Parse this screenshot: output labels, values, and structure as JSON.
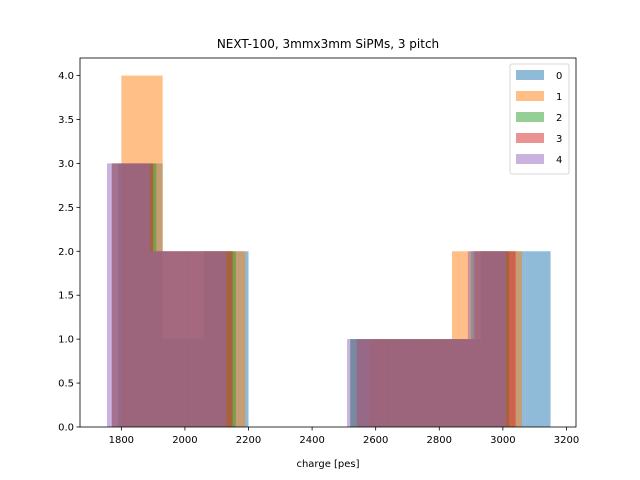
{
  "chart_data": {
    "type": "bar",
    "title": "NEXT-100, 3mmx3mm SiPMs, 3 pitch",
    "xlabel": "charge [pes]",
    "ylabel": "",
    "xlim": [
      1670,
      3230
    ],
    "ylim": [
      0,
      4.2
    ],
    "xticks": [
      1800,
      2000,
      2200,
      2400,
      2600,
      2800,
      3000,
      3200
    ],
    "yticks": [
      0.0,
      0.5,
      1.0,
      1.5,
      2.0,
      2.5,
      3.0,
      3.5,
      4.0
    ],
    "grid": false,
    "legend_position": "top-right",
    "alpha": 0.5,
    "series": [
      {
        "name": "0",
        "color": "#1f77b4",
        "bins": [
          {
            "x0": 1790,
            "x1": 1930,
            "count": 3
          },
          {
            "x0": 1930,
            "x1": 2060,
            "count": 1
          },
          {
            "x0": 2060,
            "x1": 2200,
            "count": 2
          },
          {
            "x0": 2520,
            "x1": 2650,
            "count": 1
          },
          {
            "x0": 2650,
            "x1": 2790,
            "count": 1
          },
          {
            "x0": 2790,
            "x1": 2930,
            "count": 1
          },
          {
            "x0": 2930,
            "x1": 3070,
            "count": 2
          },
          {
            "x0": 3070,
            "x1": 3150,
            "count": 2
          }
        ]
      },
      {
        "name": "1",
        "color": "#ff7f0e",
        "bins": [
          {
            "x0": 1800,
            "x1": 1930,
            "count": 4
          },
          {
            "x0": 1930,
            "x1": 2060,
            "count": 2
          },
          {
            "x0": 2060,
            "x1": 2190,
            "count": 2
          },
          {
            "x0": 2580,
            "x1": 2710,
            "count": 1
          },
          {
            "x0": 2710,
            "x1": 2840,
            "count": 1
          },
          {
            "x0": 2840,
            "x1": 2970,
            "count": 2
          },
          {
            "x0": 2970,
            "x1": 3060,
            "count": 2
          }
        ]
      },
      {
        "name": "2",
        "color": "#2ca02c",
        "bins": [
          {
            "x0": 1770,
            "x1": 1910,
            "count": 3
          },
          {
            "x0": 1910,
            "x1": 2040,
            "count": 2
          },
          {
            "x0": 2040,
            "x1": 2160,
            "count": 2
          },
          {
            "x0": 2520,
            "x1": 2650,
            "count": 1
          },
          {
            "x0": 2650,
            "x1": 2780,
            "count": 1
          },
          {
            "x0": 2780,
            "x1": 2900,
            "count": 1
          },
          {
            "x0": 2900,
            "x1": 3020,
            "count": 2
          }
        ]
      },
      {
        "name": "3",
        "color": "#d62728",
        "bins": [
          {
            "x0": 1770,
            "x1": 1900,
            "count": 3
          },
          {
            "x0": 1900,
            "x1": 2020,
            "count": 2
          },
          {
            "x0": 2020,
            "x1": 2150,
            "count": 2
          },
          {
            "x0": 2540,
            "x1": 2660,
            "count": 1
          },
          {
            "x0": 2660,
            "x1": 2790,
            "count": 1
          },
          {
            "x0": 2790,
            "x1": 2910,
            "count": 1
          },
          {
            "x0": 2910,
            "x1": 3040,
            "count": 2
          }
        ]
      },
      {
        "name": "4",
        "color": "#9467bd",
        "bins": [
          {
            "x0": 1755,
            "x1": 1890,
            "count": 3
          },
          {
            "x0": 1890,
            "x1": 2010,
            "count": 2
          },
          {
            "x0": 2010,
            "x1": 2130,
            "count": 2
          },
          {
            "x0": 2510,
            "x1": 2640,
            "count": 1
          },
          {
            "x0": 2640,
            "x1": 2760,
            "count": 1
          },
          {
            "x0": 2760,
            "x1": 2890,
            "count": 1
          },
          {
            "x0": 2890,
            "x1": 3010,
            "count": 2
          }
        ]
      }
    ]
  }
}
